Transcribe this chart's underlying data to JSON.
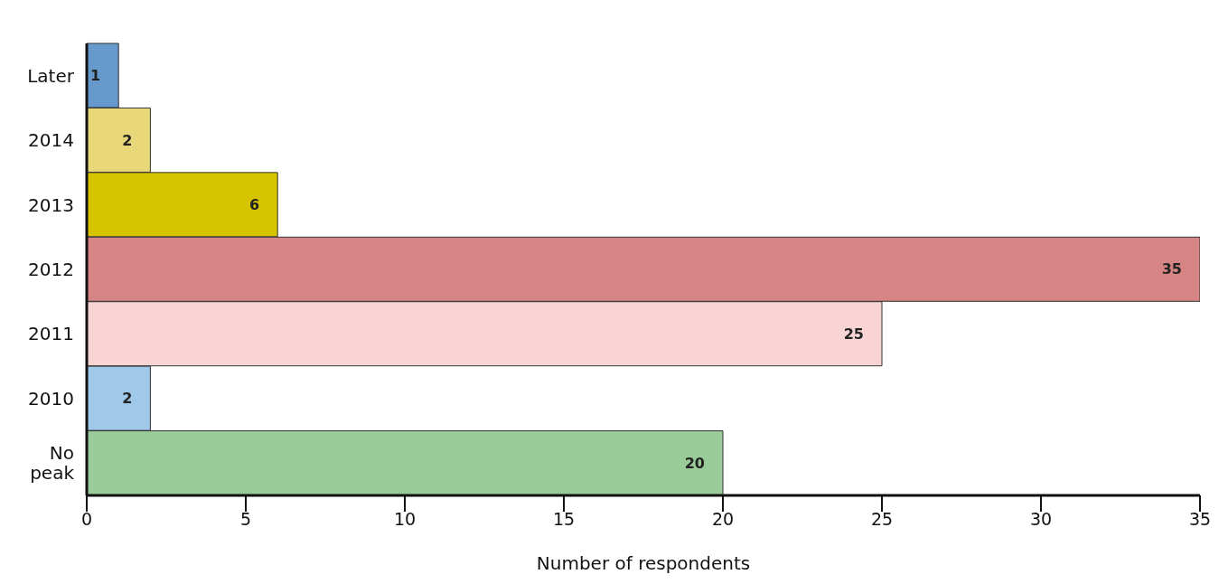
{
  "chart_data": {
    "type": "bar",
    "orientation": "horizontal",
    "categories": [
      "Later",
      "2014",
      "2013",
      "2012",
      "2011",
      "2010",
      "No peak"
    ],
    "values": [
      1,
      2,
      6,
      35,
      25,
      2,
      20
    ],
    "colors": [
      "#6699cc",
      "#e8d87a",
      "#d6c400",
      "#d68484",
      "#f9d4d4",
      "#a0c8e8",
      "#99cc99"
    ],
    "xlabel": "Number of respondents",
    "xlim": [
      0,
      35
    ],
    "xticks": [
      0,
      5,
      10,
      15,
      20,
      25,
      30,
      35
    ],
    "grid": false,
    "data_labels": true
  }
}
